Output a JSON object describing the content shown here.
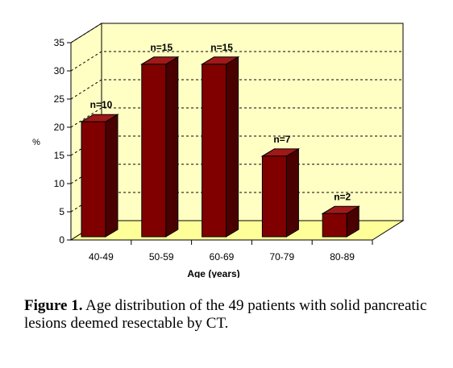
{
  "chart_data": {
    "type": "bar",
    "categories": [
      "40-49",
      "50-59",
      "60-69",
      "70-79",
      "80-89"
    ],
    "values": [
      20.4,
      30.6,
      30.6,
      14.3,
      4.1
    ],
    "data_labels": [
      "n=10",
      "n=15",
      "n=15",
      "n=7",
      "n=2"
    ],
    "xlabel": "Age (years)",
    "ylabel": "%",
    "ylim": [
      0,
      35
    ],
    "yticks": [
      "0",
      "5",
      "10",
      "15",
      "20",
      "25",
      "30",
      "35"
    ],
    "grid": "horizontal dashed",
    "legend": "none",
    "style": "3d"
  },
  "colors": {
    "bar_front": "#800000",
    "bar_side": "#4a0000",
    "bar_top": "#a01818",
    "wall": "#ffffc4",
    "floor": "#ffff99"
  },
  "caption": {
    "label": "Figure 1.",
    "text": " Age distribution of the 49 patients with solid pancreatic lesions deemed resectable by CT."
  }
}
